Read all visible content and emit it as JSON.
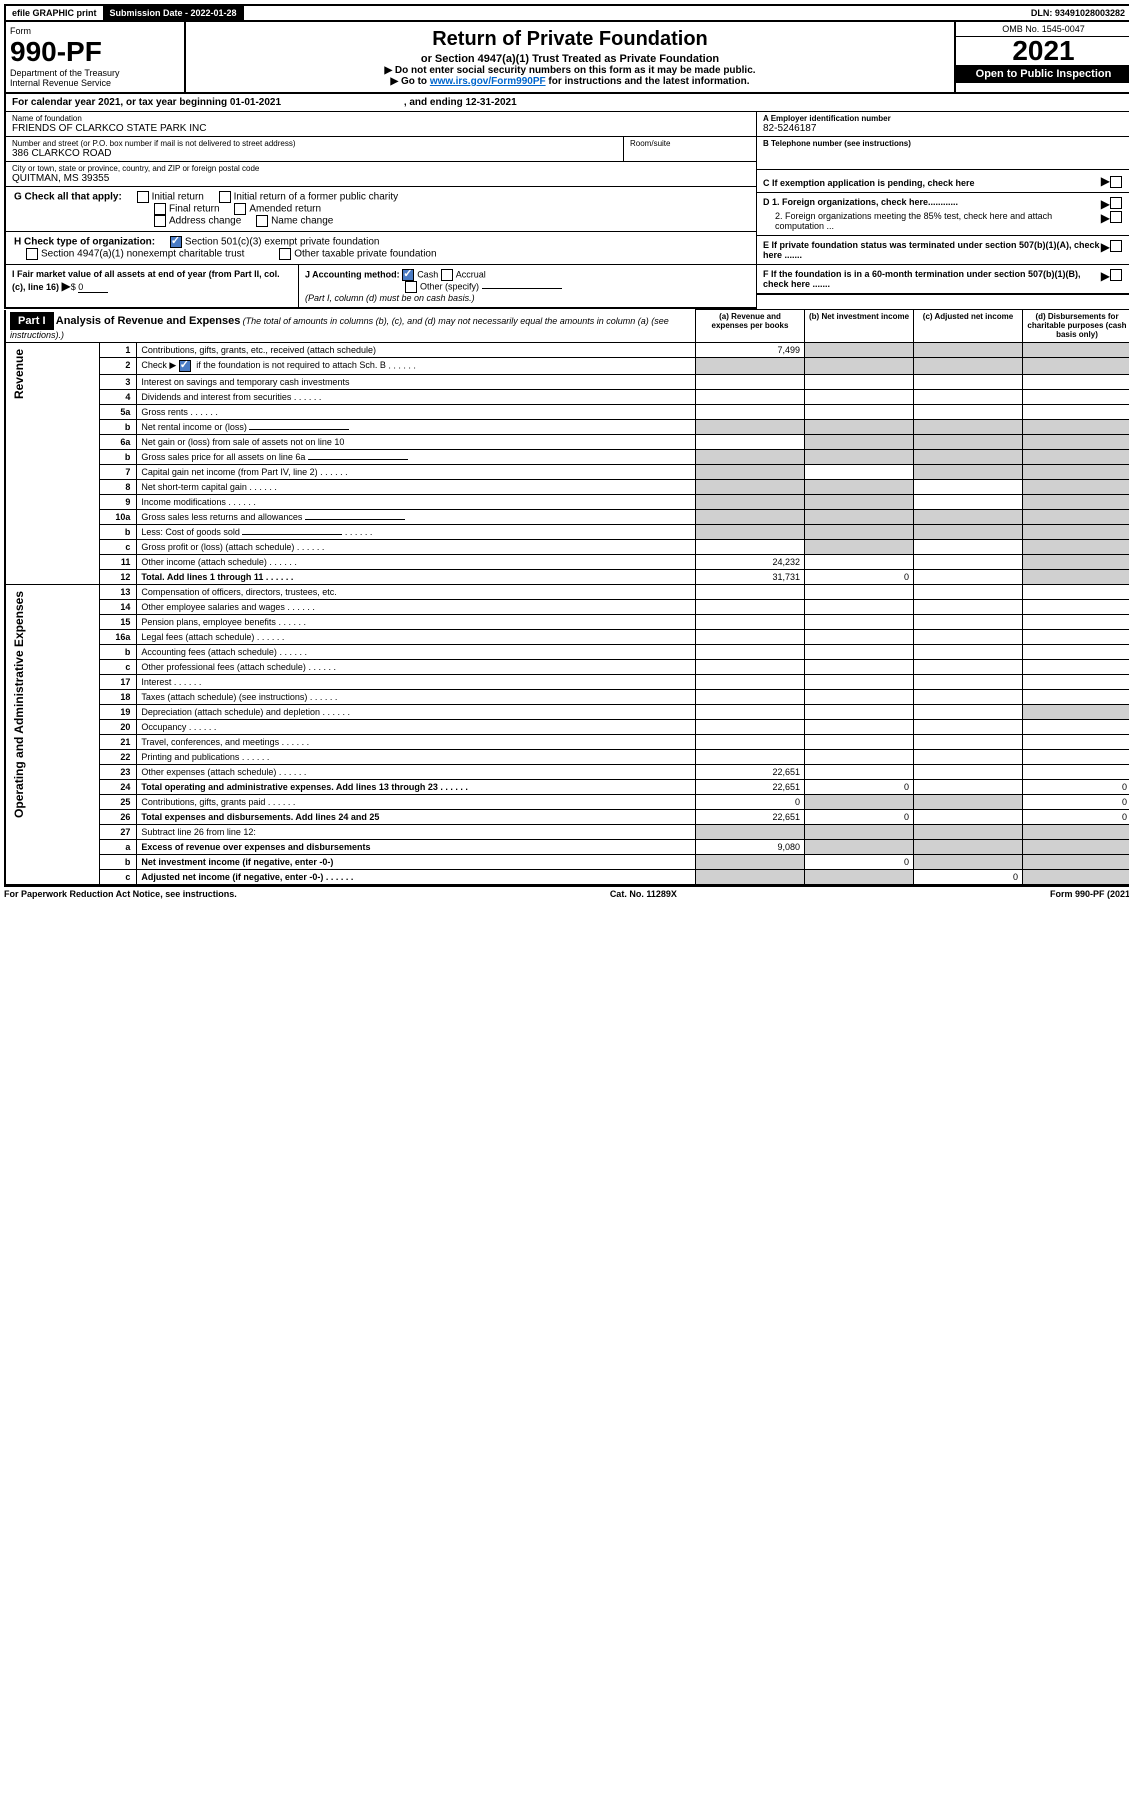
{
  "topbar": {
    "efile": "efile GRAPHIC print",
    "submission_label": "Submission Date - 2022-01-28",
    "dln": "DLN: 93491028003282"
  },
  "header": {
    "form_label": "Form",
    "form_no": "990-PF",
    "dept": "Department of the Treasury",
    "irs": "Internal Revenue Service",
    "title": "Return of Private Foundation",
    "subtitle": "or Section 4947(a)(1) Trust Treated as Private Foundation",
    "instr1": "▶ Do not enter social security numbers on this form as it may be made public.",
    "instr2_pre": "▶ Go to ",
    "instr2_link": "www.irs.gov/Form990PF",
    "instr2_post": " for instructions and the latest information.",
    "omb": "OMB No. 1545-0047",
    "year": "2021",
    "open": "Open to Public Inspection"
  },
  "calendar": {
    "text_pre": "For calendar year 2021, or tax year beginning 01-01-2021",
    "text_mid": ", and ending 12-31-2021"
  },
  "info": {
    "name_label": "Name of foundation",
    "name": "FRIENDS OF CLARKCO STATE PARK INC",
    "addr_label": "Number and street (or P.O. box number if mail is not delivered to street address)",
    "addr": "386 CLARKCO ROAD",
    "room_label": "Room/suite",
    "city_label": "City or town, state or province, country, and ZIP or foreign postal code",
    "city": "QUITMAN, MS  39355",
    "ein_label": "A Employer identification number",
    "ein": "82-5246187",
    "phone_label": "B Telephone number (see instructions)",
    "c_label": "C If exemption application is pending, check here",
    "d1": "D 1. Foreign organizations, check here............",
    "d2": "2. Foreign organizations meeting the 85% test, check here and attach computation ...",
    "e_label": "E  If private foundation status was terminated under section 507(b)(1)(A), check here .......",
    "f_label": "F  If the foundation is in a 60-month termination under section 507(b)(1)(B), check here .......",
    "g_label": "G Check all that apply:",
    "g_opts": [
      "Initial return",
      "Initial return of a former public charity",
      "Final return",
      "Amended return",
      "Address change",
      "Name change"
    ],
    "h_label": "H Check type of organization:",
    "h_opt1": "Section 501(c)(3) exempt private foundation",
    "h_opt2": "Section 4947(a)(1) nonexempt charitable trust",
    "h_opt3": "Other taxable private foundation",
    "i_label": "I Fair market value of all assets at end of year (from Part II, col. (c), line 16)",
    "i_val": "0",
    "j_label": "J Accounting method:",
    "j_cash": "Cash",
    "j_accrual": "Accrual",
    "j_other": "Other (specify)",
    "j_note": "(Part I, column (d) must be on cash basis.)"
  },
  "part1": {
    "label": "Part I",
    "title": "Analysis of Revenue and Expenses",
    "title_note": "(The total of amounts in columns (b), (c), and (d) may not necessarily equal the amounts in column (a) (see instructions).)",
    "col_a": "(a)  Revenue and expenses per books",
    "col_b": "(b)  Net investment income",
    "col_c": "(c)  Adjusted net income",
    "col_d": "(d)  Disbursements for charitable purposes (cash basis only)",
    "sections": {
      "revenue": "Revenue",
      "expenses": "Operating and Administrative Expenses"
    },
    "rows": [
      {
        "n": "1",
        "d": "Contributions, gifts, grants, etc., received (attach schedule)",
        "a": "7,499",
        "shade_bcd": true
      },
      {
        "n": "2",
        "d": "Check ▶ ☑ if the foundation is not required to attach Sch. B",
        "dots": true,
        "shade_a": true,
        "shade_bcd": true
      },
      {
        "n": "3",
        "d": "Interest on savings and temporary cash investments"
      },
      {
        "n": "4",
        "d": "Dividends and interest from securities",
        "dots": true
      },
      {
        "n": "5a",
        "d": "Gross rents",
        "dots": true
      },
      {
        "n": "b",
        "d": "Net rental income or (loss)",
        "input": true,
        "shade_bcd": true,
        "shade_a": true
      },
      {
        "n": "6a",
        "d": "Net gain or (loss) from sale of assets not on line 10",
        "shade_bcd": true
      },
      {
        "n": "b",
        "d": "Gross sales price for all assets on line 6a",
        "input": true,
        "shade_a": true,
        "shade_bcd": true
      },
      {
        "n": "7",
        "d": "Capital gain net income (from Part IV, line 2)",
        "dots": true,
        "shade_a": true,
        "shade_cd": true
      },
      {
        "n": "8",
        "d": "Net short-term capital gain",
        "dots": true,
        "shade_ab": true,
        "shade_d": true
      },
      {
        "n": "9",
        "d": "Income modifications",
        "dots": true,
        "shade_ab": true,
        "shade_d": true
      },
      {
        "n": "10a",
        "d": "Gross sales less returns and allowances",
        "input": true,
        "shade_a": true,
        "shade_bcd": true
      },
      {
        "n": "b",
        "d": "Less: Cost of goods sold",
        "dots": true,
        "input": true,
        "shade_a": true,
        "shade_bcd": true
      },
      {
        "n": "c",
        "d": "Gross profit or (loss) (attach schedule)",
        "dots": true,
        "shade_b": true,
        "shade_d": true
      },
      {
        "n": "11",
        "d": "Other income (attach schedule)",
        "dots": true,
        "a": "24,232",
        "shade_d": true
      },
      {
        "n": "12",
        "d": "Total. Add lines 1 through 11",
        "dots": true,
        "bold": true,
        "a": "31,731",
        "b": "0",
        "shade_d": true
      },
      {
        "n": "13",
        "d": "Compensation of officers, directors, trustees, etc."
      },
      {
        "n": "14",
        "d": "Other employee salaries and wages",
        "dots": true
      },
      {
        "n": "15",
        "d": "Pension plans, employee benefits",
        "dots": true
      },
      {
        "n": "16a",
        "d": "Legal fees (attach schedule)",
        "dots": true
      },
      {
        "n": "b",
        "d": "Accounting fees (attach schedule)",
        "dots": true
      },
      {
        "n": "c",
        "d": "Other professional fees (attach schedule)",
        "dots": true
      },
      {
        "n": "17",
        "d": "Interest",
        "dots": true
      },
      {
        "n": "18",
        "d": "Taxes (attach schedule) (see instructions)",
        "dots": true
      },
      {
        "n": "19",
        "d": "Depreciation (attach schedule) and depletion",
        "dots": true,
        "shade_d": true
      },
      {
        "n": "20",
        "d": "Occupancy",
        "dots": true
      },
      {
        "n": "21",
        "d": "Travel, conferences, and meetings",
        "dots": true
      },
      {
        "n": "22",
        "d": "Printing and publications",
        "dots": true
      },
      {
        "n": "23",
        "d": "Other expenses (attach schedule)",
        "dots": true,
        "a": "22,651"
      },
      {
        "n": "24",
        "d": "Total operating and administrative expenses. Add lines 13 through 23",
        "dots": true,
        "bold": true,
        "a": "22,651",
        "b": "0",
        "dcol": "0"
      },
      {
        "n": "25",
        "d": "Contributions, gifts, grants paid",
        "dots": true,
        "a": "0",
        "shade_bc": true,
        "dcol": "0"
      },
      {
        "n": "26",
        "d": "Total expenses and disbursements. Add lines 24 and 25",
        "bold": true,
        "a": "22,651",
        "b": "0",
        "dcol": "0"
      },
      {
        "n": "27",
        "d": "Subtract line 26 from line 12:",
        "shade_a": true,
        "shade_bcd": true
      },
      {
        "n": "a",
        "d": "Excess of revenue over expenses and disbursements",
        "bold": true,
        "a": "9,080",
        "shade_bcd": true
      },
      {
        "n": "b",
        "d": "Net investment income (if negative, enter -0-)",
        "bold": true,
        "shade_a": true,
        "b": "0",
        "shade_cd": true
      },
      {
        "n": "c",
        "d": "Adjusted net income (if negative, enter -0-)",
        "dots": true,
        "bold": true,
        "shade_ab": true,
        "c": "0",
        "shade_d": true
      }
    ]
  },
  "footer": {
    "left": "For Paperwork Reduction Act Notice, see instructions.",
    "mid": "Cat. No. 11289X",
    "right": "Form 990-PF (2021)"
  }
}
